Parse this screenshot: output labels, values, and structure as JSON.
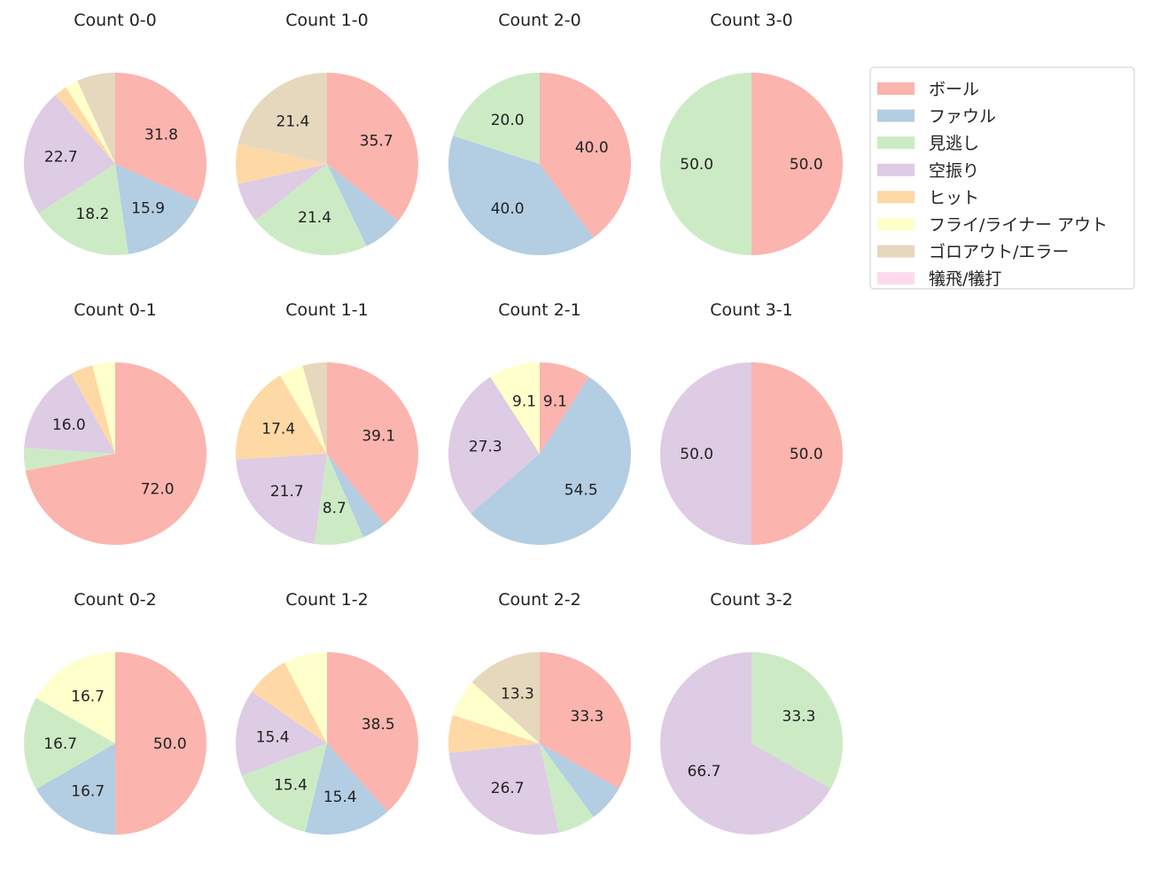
{
  "chart_data": {
    "type": "pie",
    "categories": [
      "ボール",
      "ファウル",
      "見逃し",
      "空振り",
      "ヒット",
      "フライ/ライナー アウト",
      "ゴロアウト/エラー",
      "犠飛/犠打"
    ],
    "colors": [
      "#fbb4ae",
      "#b3cde3",
      "#ccebc5",
      "#decbe4",
      "#fed9a6",
      "#ffffcc",
      "#e5d8bd",
      "#fddaec"
    ],
    "legend_position": "top-right",
    "start_angle": "top, clockwise",
    "charts": [
      {
        "title": "Count 0-0",
        "values": [
          31.8,
          15.9,
          18.2,
          22.7,
          2.3,
          2.3,
          6.8,
          0
        ],
        "labels": [
          "31.8",
          "15.9",
          "18.2",
          "22.7",
          "",
          "",
          "",
          ""
        ]
      },
      {
        "title": "Count 1-0",
        "values": [
          35.7,
          7.1,
          21.4,
          7.1,
          7.1,
          0,
          21.4,
          0
        ],
        "labels": [
          "35.7",
          "",
          "21.4",
          "",
          "",
          "",
          "21.4",
          ""
        ]
      },
      {
        "title": "Count 2-0",
        "values": [
          40.0,
          40.0,
          20.0,
          0,
          0,
          0,
          0,
          0
        ],
        "labels": [
          "40.0",
          "40.0",
          "20.0",
          "",
          "",
          "",
          "",
          ""
        ]
      },
      {
        "title": "Count 3-0",
        "values": [
          50.0,
          0,
          50.0,
          0,
          0,
          0,
          0,
          0
        ],
        "labels": [
          "50.0",
          "",
          "50.0",
          "",
          "",
          "",
          "",
          ""
        ]
      },
      {
        "title": "Count 0-1",
        "values": [
          72.0,
          0,
          4.0,
          16.0,
          4.0,
          4.0,
          0,
          0
        ],
        "labels": [
          "72.0",
          "",
          "",
          "16.0",
          "",
          "",
          "",
          ""
        ]
      },
      {
        "title": "Count 1-1",
        "values": [
          39.1,
          4.3,
          8.7,
          21.7,
          17.4,
          4.3,
          4.3,
          0
        ],
        "labels": [
          "39.1",
          "",
          "8.7",
          "21.7",
          "17.4",
          "",
          "",
          ""
        ]
      },
      {
        "title": "Count 2-1",
        "values": [
          9.1,
          54.5,
          0,
          27.3,
          0,
          9.1,
          0,
          0
        ],
        "labels": [
          "9.1",
          "54.5",
          "",
          "27.3",
          "",
          "9.1",
          "",
          ""
        ]
      },
      {
        "title": "Count 3-1",
        "values": [
          50.0,
          0,
          0,
          50.0,
          0,
          0,
          0,
          0
        ],
        "labels": [
          "50.0",
          "",
          "",
          "50.0",
          "",
          "",
          "",
          ""
        ]
      },
      {
        "title": "Count 0-2",
        "values": [
          50.0,
          16.7,
          16.7,
          0,
          0,
          16.7,
          0,
          0
        ],
        "labels": [
          "50.0",
          "16.7",
          "16.7",
          "",
          "",
          "16.7",
          "",
          ""
        ]
      },
      {
        "title": "Count 1-2",
        "values": [
          38.5,
          15.4,
          15.4,
          15.4,
          7.7,
          7.7,
          0,
          0
        ],
        "labels": [
          "38.5",
          "15.4",
          "15.4",
          "15.4",
          "",
          "",
          "",
          ""
        ]
      },
      {
        "title": "Count 2-2",
        "values": [
          33.3,
          6.7,
          6.7,
          26.7,
          6.7,
          6.7,
          13.3,
          0
        ],
        "labels": [
          "33.3",
          "",
          "",
          "26.7",
          "",
          "",
          "13.3",
          ""
        ]
      },
      {
        "title": "Count 3-2",
        "values": [
          0,
          0,
          33.3,
          66.7,
          0,
          0,
          0,
          0
        ],
        "labels": [
          "",
          "",
          "33.3",
          "66.7",
          "",
          "",
          "",
          ""
        ]
      }
    ]
  }
}
